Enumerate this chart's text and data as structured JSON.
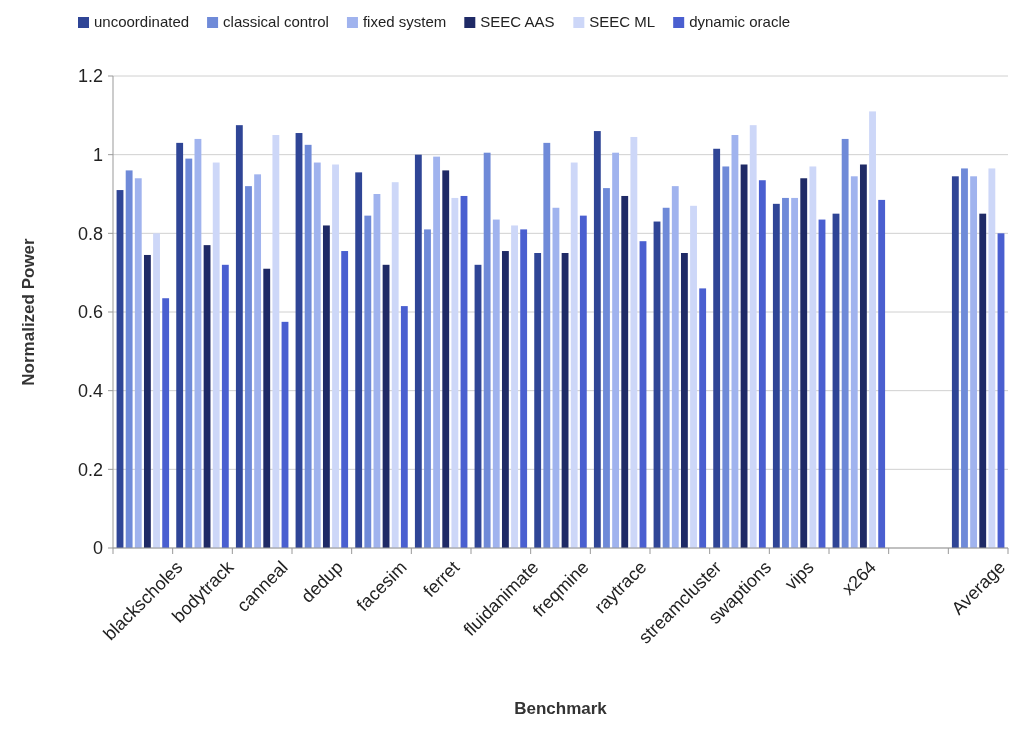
{
  "chart_data": {
    "type": "bar",
    "xlabel": "Benchmark",
    "ylabel": "Normalized Power",
    "categories": [
      "blackscholes",
      "bodytrack",
      "canneal",
      "dedup",
      "facesim",
      "ferret",
      "fluidanimate",
      "freqmine",
      "raytrace",
      "streamcluster",
      "swaptions",
      "vips",
      "x264",
      null,
      "Average"
    ],
    "series": [
      {
        "name": "uncoordinated",
        "color": "#2f4596",
        "values": [
          0.91,
          1.03,
          1.075,
          1.055,
          0.955,
          1.0,
          0.72,
          0.75,
          1.06,
          0.83,
          1.015,
          0.875,
          0.85,
          null,
          0.945
        ]
      },
      {
        "name": "classical control",
        "color": "#6f8ad8",
        "values": [
          0.96,
          0.99,
          0.92,
          1.025,
          0.845,
          0.81,
          1.005,
          1.03,
          0.915,
          0.865,
          0.97,
          0.89,
          1.04,
          null,
          0.965
        ]
      },
      {
        "name": "fixed system",
        "color": "#a0b3ee",
        "values": [
          0.94,
          1.04,
          0.95,
          0.98,
          0.9,
          0.995,
          0.835,
          0.865,
          1.005,
          0.92,
          1.05,
          0.89,
          0.945,
          null,
          0.945
        ]
      },
      {
        "name": "SEEC AAS",
        "color": "#1f2a66",
        "values": [
          0.745,
          0.77,
          0.71,
          0.82,
          0.72,
          0.96,
          0.755,
          0.75,
          0.895,
          0.75,
          0.975,
          0.94,
          0.975,
          null,
          0.85
        ]
      },
      {
        "name": "SEEC ML",
        "color": "#cdd7f8",
        "values": [
          0.8,
          0.98,
          1.05,
          0.975,
          0.93,
          0.89,
          0.82,
          0.98,
          1.045,
          0.87,
          1.075,
          0.97,
          1.11,
          null,
          0.965
        ]
      },
      {
        "name": "dynamic oracle",
        "color": "#4a5fd0",
        "values": [
          0.635,
          0.72,
          0.575,
          0.755,
          0.615,
          0.895,
          0.81,
          0.845,
          0.78,
          0.66,
          0.935,
          0.835,
          0.885,
          null,
          0.8
        ]
      }
    ],
    "ylim": [
      0,
      1.2
    ],
    "yticks": [
      0,
      0.2,
      0.4,
      0.6,
      0.8,
      1,
      1.2
    ],
    "grid": "y",
    "legend": "top"
  }
}
